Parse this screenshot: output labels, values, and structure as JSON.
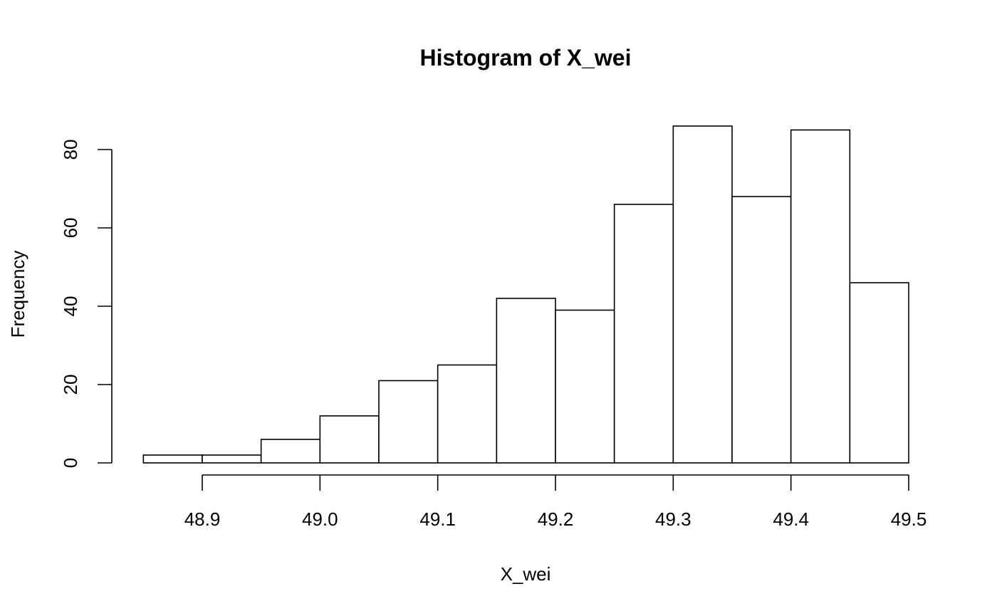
{
  "chart_data": {
    "type": "bar",
    "title": "Histogram of X_wei",
    "xlabel": "X_wei",
    "ylabel": "Frequency",
    "bins": [
      {
        "x0": 48.85,
        "x1": 48.9,
        "count": 2
      },
      {
        "x0": 48.9,
        "x1": 48.95,
        "count": 2
      },
      {
        "x0": 48.95,
        "x1": 49.0,
        "count": 6
      },
      {
        "x0": 49.0,
        "x1": 49.05,
        "count": 12
      },
      {
        "x0": 49.05,
        "x1": 49.1,
        "count": 21
      },
      {
        "x0": 49.1,
        "x1": 49.15,
        "count": 25
      },
      {
        "x0": 49.15,
        "x1": 49.2,
        "count": 42
      },
      {
        "x0": 49.2,
        "x1": 49.25,
        "count": 39
      },
      {
        "x0": 49.25,
        "x1": 49.3,
        "count": 66
      },
      {
        "x0": 49.3,
        "x1": 49.35,
        "count": 86
      },
      {
        "x0": 49.35,
        "x1": 49.4,
        "count": 68
      },
      {
        "x0": 49.4,
        "x1": 49.45,
        "count": 85
      },
      {
        "x0": 49.45,
        "x1": 49.5,
        "count": 46
      }
    ],
    "x_ticks": [
      48.9,
      49.0,
      49.1,
      49.2,
      49.3,
      49.4,
      49.5
    ],
    "x_tick_labels": [
      "48.9",
      "49.0",
      "49.1",
      "49.2",
      "49.3",
      "49.4",
      "49.5"
    ],
    "y_ticks": [
      0,
      20,
      40,
      60,
      80
    ],
    "y_tick_labels": [
      "0",
      "20",
      "40",
      "60",
      "80"
    ],
    "xlim": [
      48.85,
      49.5
    ],
    "ylim": [
      0,
      86
    ],
    "grid": false,
    "legend": "none"
  }
}
